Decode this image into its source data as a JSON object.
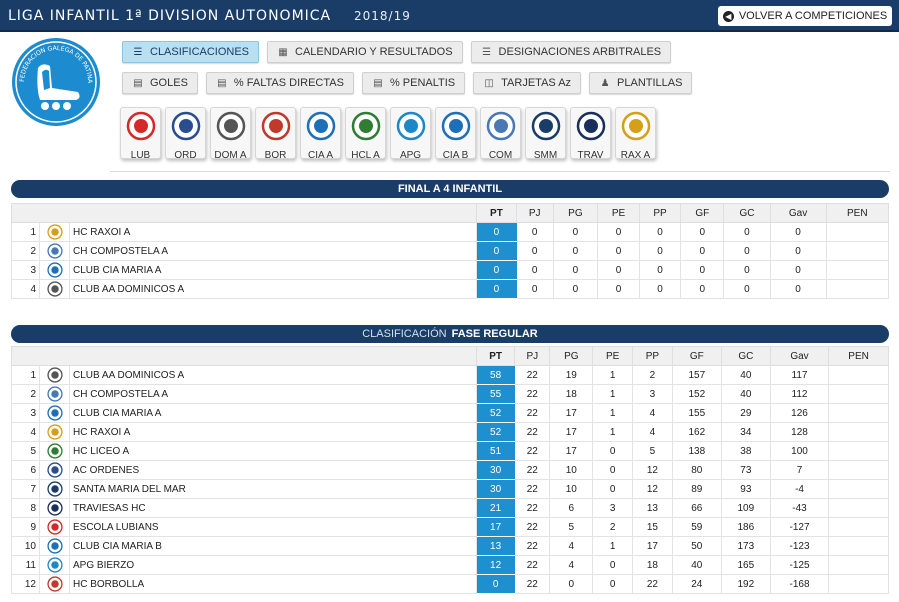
{
  "header": {
    "title": "LIGA INFANTIL 1ª DIVISION AUTONOMICA",
    "season": "2018/19",
    "back_label": "VOLVER A COMPETICIONES"
  },
  "logo": {
    "text": "FEDERACION GALEGA DE PATINAXE",
    "initials": "FGP"
  },
  "nav": {
    "row1": [
      {
        "label": "CLASIFICACIONES",
        "icon": "list-icon",
        "active": true
      },
      {
        "label": "CALENDARIO Y RESULTADOS",
        "icon": "calendar-icon",
        "active": false
      },
      {
        "label": "DESIGNACIONES ARBITRALES",
        "icon": "list-icon",
        "active": false
      }
    ],
    "row2": [
      {
        "label": "GOLES",
        "icon": "chart-icon"
      },
      {
        "label": "% FALTAS DIRECTAS",
        "icon": "chart-icon"
      },
      {
        "label": "% PENALTIS",
        "icon": "chart-icon"
      },
      {
        "label": "TARJETAS Az",
        "icon": "file-icon"
      },
      {
        "label": "PLANTILLAS",
        "icon": "person-icon"
      }
    ]
  },
  "teams": [
    {
      "abbr": "LUB",
      "color": "#d62828"
    },
    {
      "abbr": "ORD",
      "color": "#2a4d8f"
    },
    {
      "abbr": "DOM A",
      "color": "#555555"
    },
    {
      "abbr": "BOR",
      "color": "#c0392b"
    },
    {
      "abbr": "CIA A",
      "color": "#1e6fb8"
    },
    {
      "abbr": "HCL A",
      "color": "#2e7d32"
    },
    {
      "abbr": "APG",
      "color": "#1e88c7"
    },
    {
      "abbr": "CIA B",
      "color": "#1e6fb8"
    },
    {
      "abbr": "COM",
      "color": "#4a78b5"
    },
    {
      "abbr": "SMM",
      "color": "#1a3d67"
    },
    {
      "abbr": "TRAV",
      "color": "#1a2f5c"
    },
    {
      "abbr": "RAX A",
      "color": "#d4a017"
    }
  ],
  "columns": [
    "PT",
    "PJ",
    "PG",
    "PE",
    "PP",
    "GF",
    "GC",
    "Gav",
    "PEN"
  ],
  "final4": {
    "title": "FINAL A 4 INFANTIL",
    "rows": [
      {
        "pos": "1",
        "name": "HC RAXOI A",
        "color": "#d4a017",
        "pt": "0",
        "pj": "0",
        "pg": "0",
        "pe": "0",
        "pp": "0",
        "gf": "0",
        "gc": "0",
        "gav": "0",
        "pen": ""
      },
      {
        "pos": "2",
        "name": "CH COMPOSTELA A",
        "color": "#4a78b5",
        "pt": "0",
        "pj": "0",
        "pg": "0",
        "pe": "0",
        "pp": "0",
        "gf": "0",
        "gc": "0",
        "gav": "0",
        "pen": ""
      },
      {
        "pos": "3",
        "name": "CLUB CIA MARIA A",
        "color": "#1e6fb8",
        "pt": "0",
        "pj": "0",
        "pg": "0",
        "pe": "0",
        "pp": "0",
        "gf": "0",
        "gc": "0",
        "gav": "0",
        "pen": ""
      },
      {
        "pos": "4",
        "name": "CLUB AA DOMINICOS A",
        "color": "#555555",
        "pt": "0",
        "pj": "0",
        "pg": "0",
        "pe": "0",
        "pp": "0",
        "gf": "0",
        "gc": "0",
        "gav": "0",
        "pen": ""
      }
    ]
  },
  "regular": {
    "title_pre": "CLASIFICACIÓN",
    "title": "FASE REGULAR",
    "rows": [
      {
        "pos": "1",
        "name": "CLUB AA DOMINICOS A",
        "color": "#555555",
        "pt": "58",
        "pj": "22",
        "pg": "19",
        "pe": "1",
        "pp": "2",
        "gf": "157",
        "gc": "40",
        "gav": "117",
        "pen": ""
      },
      {
        "pos": "2",
        "name": "CH COMPOSTELA A",
        "color": "#4a78b5",
        "pt": "55",
        "pj": "22",
        "pg": "18",
        "pe": "1",
        "pp": "3",
        "gf": "152",
        "gc": "40",
        "gav": "112",
        "pen": ""
      },
      {
        "pos": "3",
        "name": "CLUB CIA MARIA A",
        "color": "#1e6fb8",
        "pt": "52",
        "pj": "22",
        "pg": "17",
        "pe": "1",
        "pp": "4",
        "gf": "155",
        "gc": "29",
        "gav": "126",
        "pen": ""
      },
      {
        "pos": "4",
        "name": "HC RAXOI A",
        "color": "#d4a017",
        "pt": "52",
        "pj": "22",
        "pg": "17",
        "pe": "1",
        "pp": "4",
        "gf": "162",
        "gc": "34",
        "gav": "128",
        "pen": ""
      },
      {
        "pos": "5",
        "name": "HC LICEO A",
        "color": "#2e7d32",
        "pt": "51",
        "pj": "22",
        "pg": "17",
        "pe": "0",
        "pp": "5",
        "gf": "138",
        "gc": "38",
        "gav": "100",
        "pen": ""
      },
      {
        "pos": "6",
        "name": "AC ORDENES",
        "color": "#2a4d8f",
        "pt": "30",
        "pj": "22",
        "pg": "10",
        "pe": "0",
        "pp": "12",
        "gf": "80",
        "gc": "73",
        "gav": "7",
        "pen": ""
      },
      {
        "pos": "7",
        "name": "SANTA MARIA DEL MAR",
        "color": "#1a3d67",
        "pt": "30",
        "pj": "22",
        "pg": "10",
        "pe": "0",
        "pp": "12",
        "gf": "89",
        "gc": "93",
        "gav": "-4",
        "pen": ""
      },
      {
        "pos": "8",
        "name": "TRAVIESAS HC",
        "color": "#1a2f5c",
        "pt": "21",
        "pj": "22",
        "pg": "6",
        "pe": "3",
        "pp": "13",
        "gf": "66",
        "gc": "109",
        "gav": "-43",
        "pen": ""
      },
      {
        "pos": "9",
        "name": "ESCOLA LUBIANS",
        "color": "#d62828",
        "pt": "17",
        "pj": "22",
        "pg": "5",
        "pe": "2",
        "pp": "15",
        "gf": "59",
        "gc": "186",
        "gav": "-127",
        "pen": ""
      },
      {
        "pos": "10",
        "name": "CLUB CIA MARIA B",
        "color": "#1e6fb8",
        "pt": "13",
        "pj": "22",
        "pg": "4",
        "pe": "1",
        "pp": "17",
        "gf": "50",
        "gc": "173",
        "gav": "-123",
        "pen": ""
      },
      {
        "pos": "11",
        "name": "APG BIERZO",
        "color": "#1e88c7",
        "pt": "12",
        "pj": "22",
        "pg": "4",
        "pe": "0",
        "pp": "18",
        "gf": "40",
        "gc": "165",
        "gav": "-125",
        "pen": ""
      },
      {
        "pos": "12",
        "name": "HC BORBOLLA",
        "color": "#c0392b",
        "pt": "0",
        "pj": "22",
        "pg": "0",
        "pe": "0",
        "pp": "22",
        "gf": "24",
        "gc": "192",
        "gav": "-168",
        "pen": ""
      }
    ]
  }
}
